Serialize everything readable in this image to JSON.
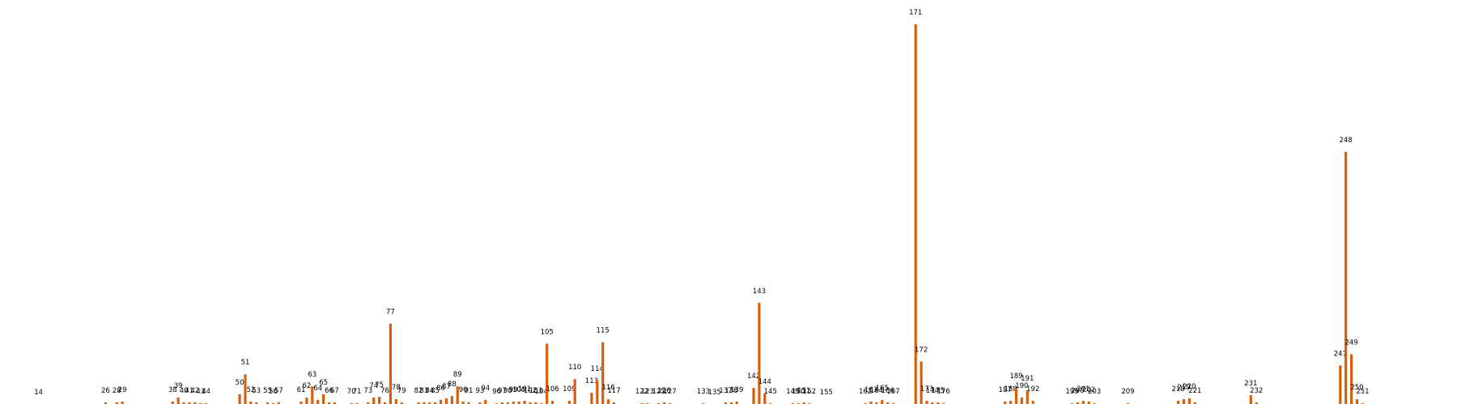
{
  "chart_data": {
    "type": "bar",
    "title": "",
    "xlabel": "",
    "ylabel": "",
    "grid": false,
    "axes_visible": false,
    "bar_color": "#d65f0e",
    "label_color": "#000000",
    "x_range": [
      10,
      265
    ],
    "ylim": [
      0,
      480
    ],
    "bars": [
      {
        "x": 14,
        "label": "14",
        "value": 0
      },
      {
        "x": 26,
        "label": "26",
        "value": 2
      },
      {
        "x": 28,
        "label": "28",
        "value": 2
      },
      {
        "x": 29,
        "label": "29",
        "value": 3
      },
      {
        "x": 38,
        "label": "38",
        "value": 3
      },
      {
        "x": 39,
        "label": "39",
        "value": 8
      },
      {
        "x": 40,
        "label": "40",
        "value": 2
      },
      {
        "x": 41,
        "label": "41",
        "value": 2
      },
      {
        "x": 42,
        "label": "42",
        "value": 2
      },
      {
        "x": 43,
        "label": "43",
        "value": 1
      },
      {
        "x": 44,
        "label": "44",
        "value": 1
      },
      {
        "x": 50,
        "label": "50",
        "value": 12
      },
      {
        "x": 51,
        "label": "51",
        "value": 37
      },
      {
        "x": 52,
        "label": "52",
        "value": 3
      },
      {
        "x": 53,
        "label": "53",
        "value": 2
      },
      {
        "x": 55,
        "label": "55",
        "value": 2
      },
      {
        "x": 56,
        "label": "56",
        "value": 1
      },
      {
        "x": 57,
        "label": "57",
        "value": 2
      },
      {
        "x": 61,
        "label": "61",
        "value": 3
      },
      {
        "x": 62,
        "label": "62",
        "value": 8
      },
      {
        "x": 63,
        "label": "63",
        "value": 22
      },
      {
        "x": 64,
        "label": "64",
        "value": 5
      },
      {
        "x": 65,
        "label": "65",
        "value": 12
      },
      {
        "x": 66,
        "label": "66",
        "value": 2
      },
      {
        "x": 67,
        "label": "67",
        "value": 2
      },
      {
        "x": 70,
        "label": "70",
        "value": 1
      },
      {
        "x": 71,
        "label": "71",
        "value": 1
      },
      {
        "x": 73,
        "label": "73",
        "value": 2
      },
      {
        "x": 74,
        "label": "74",
        "value": 8
      },
      {
        "x": 75,
        "label": "75",
        "value": 9
      },
      {
        "x": 76,
        "label": "76",
        "value": 2
      },
      {
        "x": 77,
        "label": "77",
        "value": 100
      },
      {
        "x": 78,
        "label": "78",
        "value": 6
      },
      {
        "x": 79,
        "label": "79",
        "value": 2
      },
      {
        "x": 82,
        "label": "82",
        "value": 2
      },
      {
        "x": 83,
        "label": "83",
        "value": 2
      },
      {
        "x": 84,
        "label": "84",
        "value": 2
      },
      {
        "x": 85,
        "label": "85",
        "value": 2
      },
      {
        "x": 86,
        "label": "86",
        "value": 5
      },
      {
        "x": 87,
        "label": "87",
        "value": 7
      },
      {
        "x": 88,
        "label": "88",
        "value": 10
      },
      {
        "x": 89,
        "label": "89",
        "value": 22
      },
      {
        "x": 90,
        "label": "90",
        "value": 3
      },
      {
        "x": 91,
        "label": "91",
        "value": 2
      },
      {
        "x": 93,
        "label": "93",
        "value": 2
      },
      {
        "x": 94,
        "label": "94",
        "value": 5
      },
      {
        "x": 96,
        "label": "96",
        "value": 1
      },
      {
        "x": 97,
        "label": "97",
        "value": 2
      },
      {
        "x": 98,
        "label": "98",
        "value": 2
      },
      {
        "x": 99,
        "label": "99",
        "value": 3
      },
      {
        "x": 100,
        "label": "100",
        "value": 3
      },
      {
        "x": 101,
        "label": "101",
        "value": 4
      },
      {
        "x": 102,
        "label": "102",
        "value": 2
      },
      {
        "x": 103,
        "label": "103",
        "value": 2
      },
      {
        "x": 104,
        "label": "104",
        "value": 1
      },
      {
        "x": 105,
        "label": "105",
        "value": 75
      },
      {
        "x": 106,
        "label": "106",
        "value": 4
      },
      {
        "x": 109,
        "label": "109",
        "value": 4
      },
      {
        "x": 110,
        "label": "110",
        "value": 31
      },
      {
        "x": 113,
        "label": "113",
        "value": 14
      },
      {
        "x": 114,
        "label": "114",
        "value": 29
      },
      {
        "x": 115,
        "label": "115",
        "value": 77
      },
      {
        "x": 116,
        "label": "116",
        "value": 6
      },
      {
        "x": 117,
        "label": "117",
        "value": 2
      },
      {
        "x": 122,
        "label": "122",
        "value": 1
      },
      {
        "x": 123,
        "label": "123",
        "value": 1
      },
      {
        "x": 125,
        "label": "125",
        "value": 1
      },
      {
        "x": 126,
        "label": "126",
        "value": 2
      },
      {
        "x": 127,
        "label": "127",
        "value": 1
      },
      {
        "x": 133,
        "label": "133",
        "value": 1
      },
      {
        "x": 135,
        "label": "135",
        "value": 0
      },
      {
        "x": 137,
        "label": "137",
        "value": 2
      },
      {
        "x": 138,
        "label": "138",
        "value": 2
      },
      {
        "x": 139,
        "label": "139",
        "value": 3
      },
      {
        "x": 142,
        "label": "142",
        "value": 20
      },
      {
        "x": 143,
        "label": "143",
        "value": 126
      },
      {
        "x": 144,
        "label": "144",
        "value": 13
      },
      {
        "x": 145,
        "label": "145",
        "value": 1
      },
      {
        "x": 149,
        "label": "149",
        "value": 1
      },
      {
        "x": 150,
        "label": "150",
        "value": 1
      },
      {
        "x": 151,
        "label": "151",
        "value": 2
      },
      {
        "x": 152,
        "label": "152",
        "value": 1
      },
      {
        "x": 155,
        "label": "155",
        "value": 0
      },
      {
        "x": 162,
        "label": "162",
        "value": 1
      },
      {
        "x": 163,
        "label": "163",
        "value": 3
      },
      {
        "x": 164,
        "label": "164",
        "value": 2
      },
      {
        "x": 165,
        "label": "165",
        "value": 5
      },
      {
        "x": 166,
        "label": "166",
        "value": 2
      },
      {
        "x": 167,
        "label": "167",
        "value": 1
      },
      {
        "x": 171,
        "label": "171",
        "value": 473
      },
      {
        "x": 172,
        "label": "172",
        "value": 53
      },
      {
        "x": 173,
        "label": "173",
        "value": 4
      },
      {
        "x": 174,
        "label": "174",
        "value": 2
      },
      {
        "x": 175,
        "label": "175",
        "value": 2
      },
      {
        "x": 176,
        "label": "176",
        "value": 1
      },
      {
        "x": 187,
        "label": "187",
        "value": 3
      },
      {
        "x": 188,
        "label": "188",
        "value": 4
      },
      {
        "x": 189,
        "label": "189",
        "value": 20
      },
      {
        "x": 190,
        "label": "190",
        "value": 8
      },
      {
        "x": 191,
        "label": "191",
        "value": 17
      },
      {
        "x": 192,
        "label": "192",
        "value": 4
      },
      {
        "x": 199,
        "label": "199",
        "value": 1
      },
      {
        "x": 200,
        "label": "200",
        "value": 2
      },
      {
        "x": 201,
        "label": "201",
        "value": 4
      },
      {
        "x": 202,
        "label": "202",
        "value": 3
      },
      {
        "x": 203,
        "label": "203",
        "value": 1
      },
      {
        "x": 209,
        "label": "209",
        "value": 1
      },
      {
        "x": 218,
        "label": "218",
        "value": 4
      },
      {
        "x": 219,
        "label": "219",
        "value": 6
      },
      {
        "x": 220,
        "label": "220",
        "value": 7
      },
      {
        "x": 221,
        "label": "221",
        "value": 2
      },
      {
        "x": 231,
        "label": "231",
        "value": 11
      },
      {
        "x": 232,
        "label": "232",
        "value": 2
      },
      {
        "x": 247,
        "label": "247",
        "value": 48
      },
      {
        "x": 248,
        "label": "248",
        "value": 314
      },
      {
        "x": 249,
        "label": "249",
        "value": 62
      },
      {
        "x": 250,
        "label": "250",
        "value": 6
      },
      {
        "x": 251,
        "label": "251",
        "value": 1
      }
    ]
  }
}
